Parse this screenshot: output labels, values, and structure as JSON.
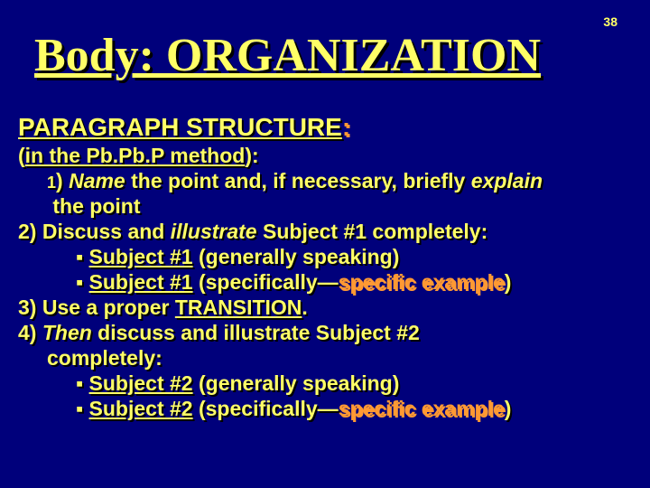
{
  "page_number": "38",
  "title": "Body:  ORGANIZATION",
  "section_heading_html": "<span class='u'>PARAGRAPH STRUCTURE</span><span class='accent'>:</span>",
  "method_line_html": "(<span class='u'>in the Pb.Pb.P method</span>):",
  "lines": [
    {
      "indent": 1,
      "html": "<span style='font-size:18px'>1</span>) <span class='i'>Name</span> the point and, if necessary, briefly <span class='i'>explain</span>"
    },
    {
      "indent": 1,
      "html": "&nbsp;the point"
    },
    {
      "indent": 0,
      "html": "2) Discuss and <span class='i'>illustrate</span> Subject #1 completely:"
    },
    {
      "indent": 2,
      "html": "&#9642; <span class='u'>Subject #1</span> (generally speaking)"
    },
    {
      "indent": 2,
      "html": "&#9642; <span class='u'>Subject #1</span> (specifically&mdash;<span class='accent'>specific example</span>)"
    },
    {
      "indent": 0,
      "html": "3) Use a proper <span class='u'>TRANSITION</span>."
    },
    {
      "indent": 0,
      "html": "4) <span class='i'>Then</span> discuss and illustrate Subject #2"
    },
    {
      "indent": 1,
      "html": "completely:"
    },
    {
      "indent": 2,
      "html": "&#9642; <span class='u'>Subject #2</span> (generally speaking)"
    },
    {
      "indent": 2,
      "html": "&#9642; <span class='u'>Subject #2</span> (specifically&mdash;<span class='accent'>specific example</span>)"
    }
  ],
  "colors": {
    "background": "#00007b",
    "text": "#ffff66",
    "shadow": "#000000",
    "accent": "#ff9933"
  },
  "typography": {
    "title_font": "Georgia, serif",
    "title_size_pt": 40,
    "body_font": "Arial, sans-serif",
    "body_size_pt": 18,
    "heading_size_pt": 21
  }
}
